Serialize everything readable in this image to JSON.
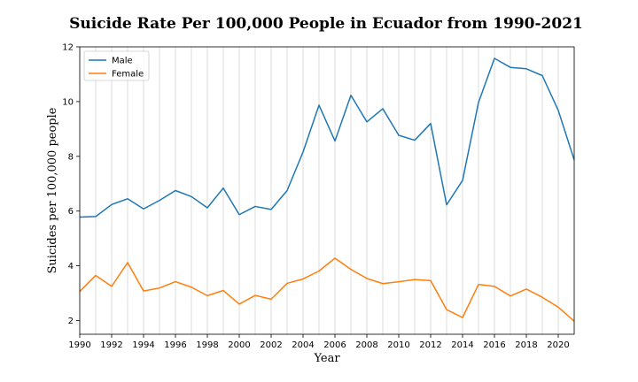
{
  "chart_data": {
    "type": "line",
    "title": "Suicide Rate Per 100,000 People in Ecuador from 1990-2021",
    "xlabel": "Year",
    "ylabel": "Suicides per 100,000 people",
    "xlim": [
      1990,
      2021
    ],
    "ylim": [
      1.5,
      12
    ],
    "xticks": [
      1990,
      1992,
      1994,
      1996,
      1998,
      2000,
      2002,
      2004,
      2006,
      2008,
      2010,
      2012,
      2014,
      2016,
      2018,
      2020
    ],
    "yticks": [
      2,
      4,
      6,
      8,
      10,
      12
    ],
    "grid": "vertical",
    "legend_position": "top-left",
    "x": [
      1990,
      1991,
      1992,
      1993,
      1994,
      1995,
      1996,
      1997,
      1998,
      1999,
      2000,
      2001,
      2002,
      2003,
      2004,
      2005,
      2006,
      2007,
      2008,
      2009,
      2010,
      2011,
      2012,
      2013,
      2014,
      2015,
      2016,
      2017,
      2018,
      2019,
      2020,
      2021
    ],
    "series": [
      {
        "name": "Male",
        "color": "#1f77b4",
        "values": [
          5.78,
          5.8,
          6.24,
          6.45,
          6.08,
          6.39,
          6.75,
          6.53,
          6.12,
          6.84,
          5.87,
          6.17,
          6.06,
          6.75,
          8.16,
          9.87,
          8.56,
          10.23,
          9.26,
          9.74,
          8.77,
          8.59,
          9.2,
          6.23,
          7.12,
          9.97,
          11.58,
          11.25,
          11.2,
          10.95,
          9.68,
          7.87
        ]
      },
      {
        "name": "Female",
        "color": "#ff7f0e",
        "values": [
          3.06,
          3.65,
          3.25,
          4.12,
          3.08,
          3.19,
          3.42,
          3.22,
          2.91,
          3.1,
          2.6,
          2.92,
          2.78,
          3.36,
          3.52,
          3.81,
          4.28,
          3.87,
          3.54,
          3.35,
          3.42,
          3.5,
          3.46,
          2.4,
          2.11,
          3.32,
          3.25,
          2.9,
          3.15,
          2.85,
          2.49,
          1.98
        ]
      }
    ]
  }
}
